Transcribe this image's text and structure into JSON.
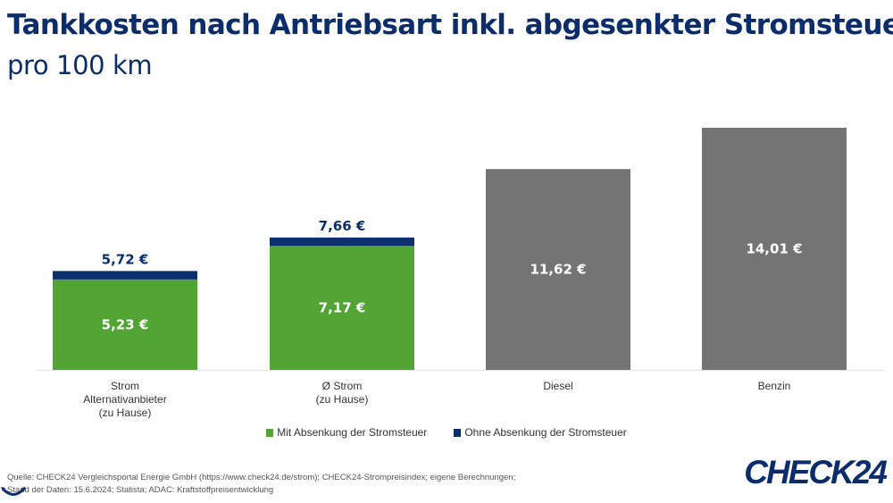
{
  "chart_data": {
    "type": "bar",
    "stacked": true,
    "title": "Tankkosten nach Antriebsart inkl. abgesenkter Stromsteuer",
    "subtitle": "pro 100 km",
    "categories": [
      [
        "Strom",
        "Alternativanbieter",
        "(zu Hause)"
      ],
      [
        "Ø Strom",
        "(zu Hause)"
      ],
      [
        "Diesel"
      ],
      [
        "Benzin"
      ]
    ],
    "bars": [
      {
        "base": 5.23,
        "base_label": "5,23 €",
        "total": 5.72,
        "total_label": "5,72 €",
        "kind": "strom"
      },
      {
        "base": 7.17,
        "base_label": "7,17 €",
        "total": 7.66,
        "total_label": "7,66 €",
        "kind": "strom"
      },
      {
        "base": 11.62,
        "base_label": "11,62 €",
        "kind": "fuel"
      },
      {
        "base": 14.01,
        "base_label": "14,01 €",
        "kind": "fuel"
      }
    ],
    "series": [
      {
        "name": "Mit Absenkung der Stromsteuer",
        "color": "#52a535"
      },
      {
        "name": "Ohne Absenkung der Stromsteuer",
        "color": "#0c2f6e"
      }
    ],
    "fuel_color": "#747474",
    "ylim": [
      0,
      14.01
    ],
    "grid": false,
    "legend": "bottom-center"
  },
  "source": {
    "line1": "Quelle: CHECK24 Vergleichsportal Energie GmbH (https://www.check24.de/strom); CHECK24-Strompreisindex; eigene Berechnungen;",
    "line2": "Stand der Daten: 15.6.2024; Statista; ADAC: Kraftstoffpreisentwicklung"
  },
  "logo": "CHECK24"
}
